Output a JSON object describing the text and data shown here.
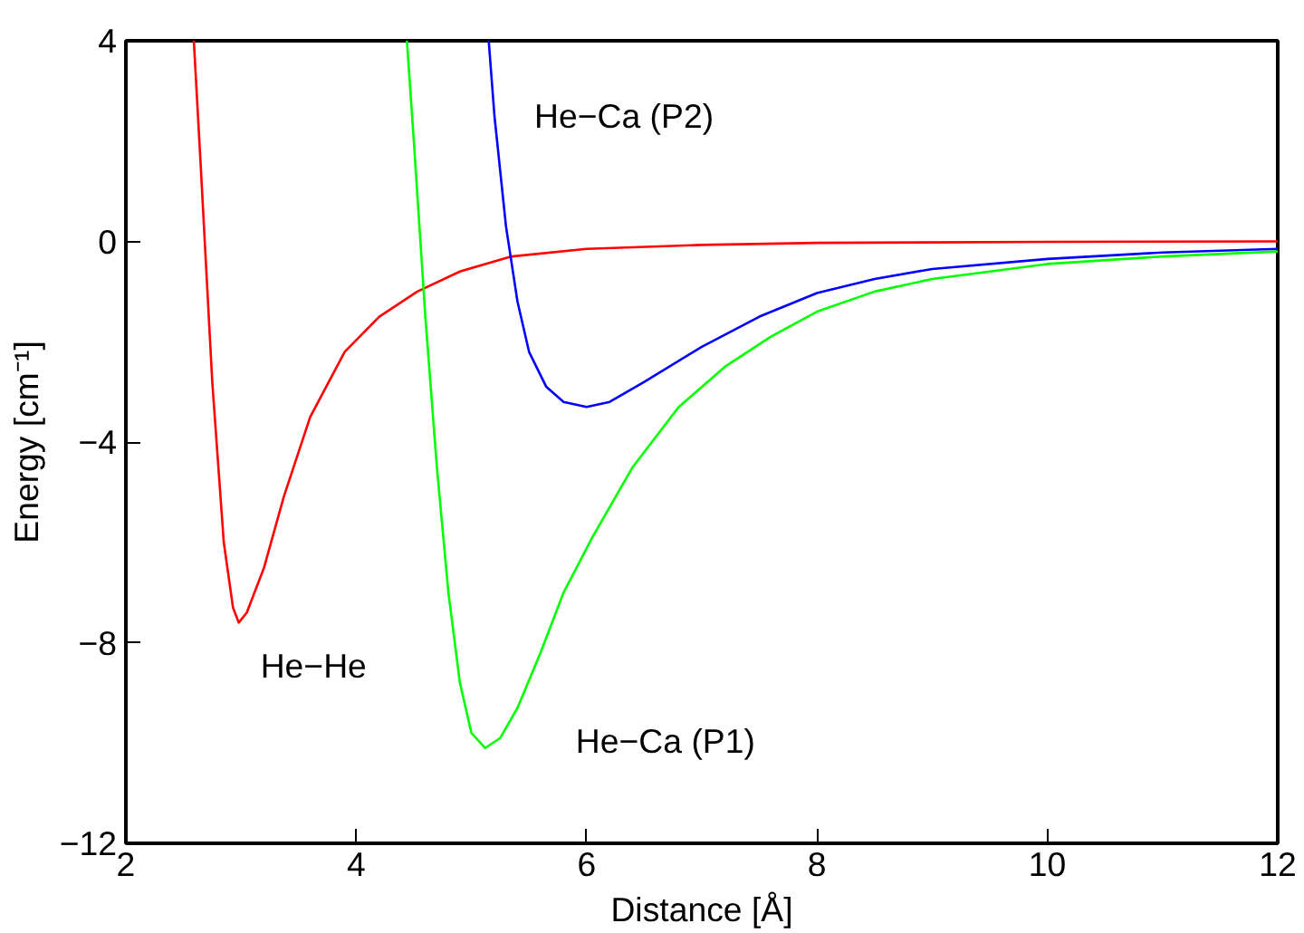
{
  "chart_data": {
    "type": "line",
    "xlabel": "Distance [Å]",
    "ylabel": "Energy [cm⁻¹]",
    "xlim": [
      2,
      12
    ],
    "ylim": [
      -12,
      4
    ],
    "xticks": [
      2,
      4,
      6,
      8,
      10,
      12
    ],
    "yticks": [
      {
        "value": -12,
        "label": "−12"
      },
      {
        "value": -8,
        "label": "−8"
      },
      {
        "value": -4,
        "label": "−4"
      },
      0,
      4
    ],
    "grid": false,
    "legend": false,
    "line_style": "solid",
    "series": [
      {
        "name": "He−He",
        "color": "#ff0000",
        "x": [
          2.59,
          2.65,
          2.75,
          2.85,
          2.93,
          2.98,
          3.05,
          3.2,
          3.37,
          3.6,
          3.9,
          4.2,
          4.53,
          4.9,
          5.35,
          6,
          7,
          8,
          10,
          12
        ],
        "values": [
          4,
          1.5,
          -2.8,
          -6.0,
          -7.3,
          -7.6,
          -7.4,
          -6.5,
          -5.1,
          -3.5,
          -2.2,
          -1.5,
          -1.0,
          -0.6,
          -0.3,
          -0.15,
          -0.07,
          -0.03,
          -0.01,
          0
        ]
      },
      {
        "name": "He−Ca (P1)",
        "color": "#00ff00",
        "x": [
          4.44,
          4.5,
          4.6,
          4.7,
          4.8,
          4.9,
          5.0,
          5.12,
          5.25,
          5.4,
          5.6,
          5.8,
          6.05,
          6.4,
          6.8,
          7.2,
          7.6,
          8,
          8.5,
          9,
          10,
          11,
          12
        ],
        "values": [
          4,
          2.0,
          -1.5,
          -4.5,
          -7.0,
          -8.8,
          -9.8,
          -10.1,
          -9.9,
          -9.3,
          -8.2,
          -7.0,
          -5.9,
          -4.5,
          -3.3,
          -2.5,
          -1.9,
          -1.4,
          -1.0,
          -0.75,
          -0.45,
          -0.3,
          -0.2
        ]
      },
      {
        "name": "He−Ca (P2)",
        "color": "#0000ff",
        "x": [
          5.15,
          5.2,
          5.3,
          5.4,
          5.5,
          5.65,
          5.8,
          6.0,
          6.2,
          6.5,
          7,
          7.5,
          8,
          8.5,
          9,
          10,
          11,
          12
        ],
        "values": [
          4,
          2.5,
          0.3,
          -1.2,
          -2.2,
          -2.9,
          -3.2,
          -3.3,
          -3.2,
          -2.8,
          -2.1,
          -1.5,
          -1.03,
          -0.75,
          -0.55,
          -0.35,
          -0.22,
          -0.15
        ]
      }
    ]
  }
}
